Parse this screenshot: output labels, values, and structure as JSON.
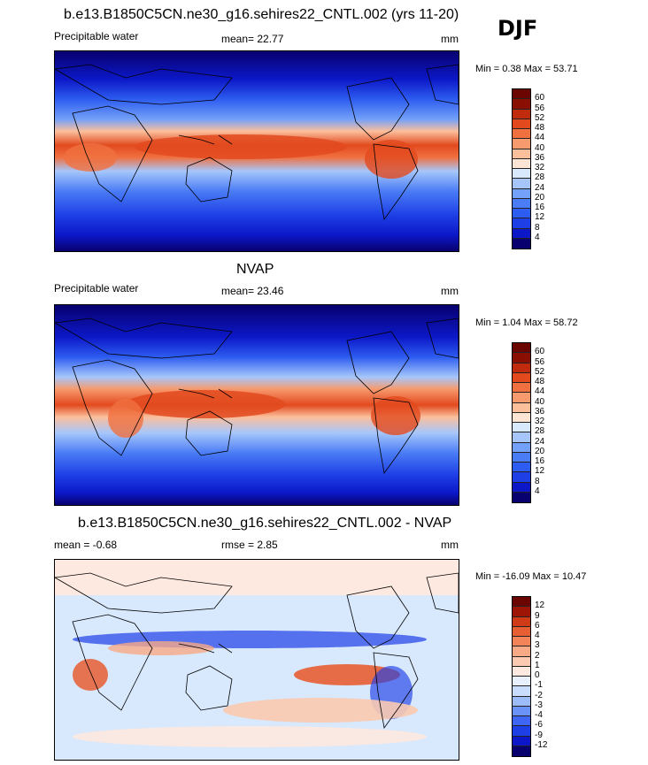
{
  "season": "DJF",
  "panel1": {
    "title": "b.e13.B1850C5CN.ne30_g16.sehires22_CNTL.002 (yrs 11-20)",
    "left_label": "Precipitable water",
    "mean_label": "mean=  22.77",
    "unit": "mm",
    "minmax": "Min =   0.38 Max =  53.71",
    "colorbar_ticks": [
      "60",
      "56",
      "52",
      "48",
      "44",
      "40",
      "36",
      "32",
      "28",
      "24",
      "20",
      "16",
      "12",
      "8",
      "4"
    ]
  },
  "panel2": {
    "title": "NVAP",
    "left_label": "Precipitable water",
    "mean_label": "mean=  23.46",
    "unit": "mm",
    "minmax": "Min =   1.04 Max =  58.72",
    "colorbar_ticks": [
      "60",
      "56",
      "52",
      "48",
      "44",
      "40",
      "36",
      "32",
      "28",
      "24",
      "20",
      "16",
      "12",
      "8",
      "4"
    ]
  },
  "panel3": {
    "title": "b.e13.B1850C5CN.ne30_g16.sehires22_CNTL.002 - NVAP",
    "mean_label": "mean =  -0.68",
    "rmse_label": "rmse =   2.85",
    "unit": "mm",
    "minmax": "Min = -16.09 Max =  10.47",
    "colorbar_ticks": [
      "12",
      "9",
      "6",
      "4",
      "3",
      "2",
      "1",
      "0",
      "-1",
      "-2",
      "-3",
      "-4",
      "-6",
      "-9",
      "-12"
    ]
  },
  "colors": {
    "abs_scale": [
      "#08006e",
      "#0c18c8",
      "#1e3fe6",
      "#2d5cf0",
      "#4a7cf5",
      "#73a0f8",
      "#a6c6fb",
      "#d8e8fd",
      "#fde5d6",
      "#fbbf9c",
      "#f79a6e",
      "#f07040",
      "#e24a1e",
      "#c02a0d",
      "#8a0e02",
      "#6b0500"
    ],
    "diff_scale": [
      "#08006e",
      "#0c18c8",
      "#1e3fe6",
      "#3f66f2",
      "#6b93f7",
      "#9dbdfa",
      "#c8dcfc",
      "#e8f0fe",
      "#fde9df",
      "#fbcab0",
      "#f8a985",
      "#f3845a",
      "#e85e33",
      "#cf3a17",
      "#9e1505",
      "#6b0500"
    ]
  }
}
